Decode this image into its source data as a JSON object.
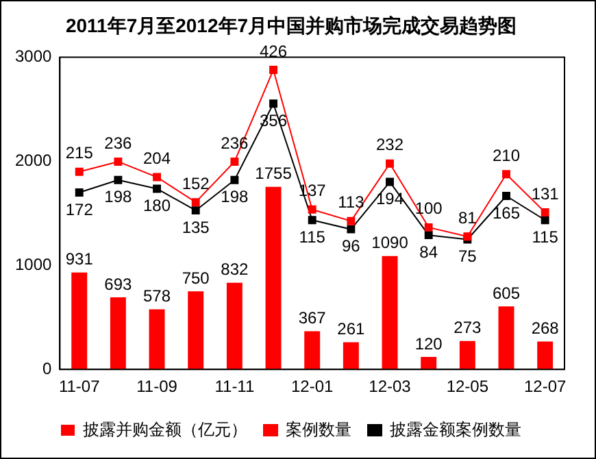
{
  "chart_data": {
    "type": "bar",
    "title": "2011年7月至2012年7月中国并购市场完成交易趋势图",
    "categories": [
      "11-07",
      null,
      "11-09",
      null,
      "11-11",
      null,
      "12-01",
      null,
      "12-03",
      null,
      "12-05",
      null,
      "12-07"
    ],
    "series": [
      {
        "name": "披露并购金额（亿元）",
        "color": "#ff0000",
        "values": [
          931,
          693,
          578,
          750,
          832,
          1755,
          367,
          261,
          1090,
          120,
          273,
          605,
          268
        ]
      },
      {
        "name": "案例数量",
        "type": "line",
        "axis": "y2",
        "color": "#ff0000",
        "values": [
          215,
          236,
          204,
          152,
          236,
          426,
          137,
          113,
          232,
          100,
          81,
          210,
          131
        ]
      },
      {
        "name": "披露金额案例数量",
        "type": "line",
        "axis": "y2",
        "color": "#000000",
        "values": [
          172,
          198,
          180,
          135,
          198,
          356,
          115,
          96,
          194,
          84,
          75,
          165,
          115
        ]
      }
    ],
    "ylim": [
      0,
      3000
    ],
    "yticks": [
      0,
      1000,
      2000,
      3000
    ],
    "y2lim": [
      -194,
      452
    ],
    "data_labels": true,
    "legend": "bottom",
    "grid": false,
    "marker": "square",
    "line_style": "solid"
  }
}
